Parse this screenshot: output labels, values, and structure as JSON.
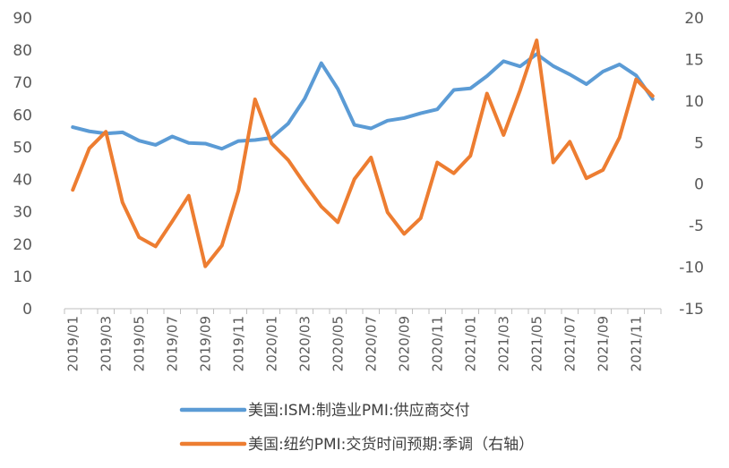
{
  "chart_data": {
    "type": "line",
    "colors": {
      "series_1": "#5B9BD5",
      "series_2": "#ED7D31",
      "axis": "#BFBFBF",
      "text": "#595959"
    },
    "x": [
      "2019/01",
      "2019/02",
      "2019/03",
      "2019/04",
      "2019/05",
      "2019/06",
      "2019/07",
      "2019/08",
      "2019/09",
      "2019/10",
      "2019/11",
      "2019/12",
      "2020/01",
      "2020/02",
      "2020/03",
      "2020/04",
      "2020/05",
      "2020/06",
      "2020/07",
      "2020/08",
      "2020/09",
      "2020/10",
      "2020/11",
      "2020/12",
      "2021/01",
      "2021/02",
      "2021/03",
      "2021/04",
      "2021/05",
      "2021/06",
      "2021/07",
      "2021/08",
      "2021/09",
      "2021/10",
      "2021/11",
      "2021/12"
    ],
    "x_tick_labels": [
      "2019/01",
      "2019/03",
      "2019/05",
      "2019/07",
      "2019/09",
      "2019/11",
      "2020/01",
      "2020/03",
      "2020/05",
      "2020/07",
      "2020/09",
      "2020/11",
      "2021/01",
      "2021/03",
      "2021/05",
      "2021/07",
      "2021/09",
      "2021/11"
    ],
    "y_left": {
      "min": 0,
      "max": 90,
      "step": 10,
      "ticks": [
        "0",
        "10",
        "20",
        "30",
        "40",
        "50",
        "60",
        "70",
        "80",
        "90"
      ]
    },
    "y_right": {
      "min": -15,
      "max": 20,
      "step": 5,
      "ticks": [
        "-15",
        "-10",
        "-5",
        "0",
        "5",
        "10",
        "15",
        "20"
      ]
    },
    "grid": false,
    "legend_position": "bottom",
    "series": [
      {
        "name": "美国:ISM:制造业PMI:供应商交付",
        "axis": "left",
        "values": [
          56.2,
          54.9,
          54.2,
          54.6,
          52.0,
          50.7,
          53.3,
          51.3,
          51.1,
          49.5,
          51.9,
          52.2,
          52.9,
          57.3,
          65.0,
          76.0,
          68.0,
          56.9,
          55.8,
          58.2,
          59.0,
          60.5,
          61.7,
          67.7,
          68.2,
          72.0,
          76.6,
          75.0,
          78.8,
          75.1,
          72.5,
          69.5,
          73.4,
          75.6,
          72.2,
          64.9
        ]
      },
      {
        "name": "美国:纽约PMI:交货时间预期:季调（右轴）",
        "axis": "right",
        "values": [
          -0.7,
          4.3,
          6.3,
          -2.2,
          -6.4,
          -7.5,
          -4.5,
          -1.4,
          -9.9,
          -7.4,
          -0.8,
          10.2,
          4.9,
          2.9,
          0.0,
          -2.7,
          -4.6,
          0.6,
          3.2,
          -3.4,
          -6.0,
          -4.1,
          2.6,
          1.3,
          3.4,
          10.9,
          5.9,
          11.3,
          17.3,
          2.6,
          5.1,
          0.7,
          1.7,
          5.6,
          12.6,
          10.6
        ]
      }
    ]
  }
}
